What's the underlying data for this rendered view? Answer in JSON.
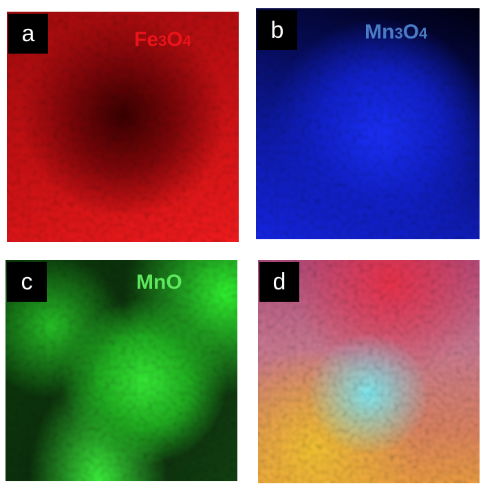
{
  "panels": [
    {
      "label": "a",
      "title": [
        {
          "text": "Fe"
        },
        {
          "text": "3",
          "sub": true
        },
        {
          "text": "O"
        },
        {
          "text": "4",
          "sub": true
        }
      ],
      "color": "#e8141a"
    },
    {
      "label": "b",
      "title": [
        {
          "text": "Mn"
        },
        {
          "text": "3",
          "sub": true
        },
        {
          "text": "O"
        },
        {
          "text": "4",
          "sub": true
        }
      ],
      "color": "#4a7cc4"
    },
    {
      "label": "c",
      "title": [
        {
          "text": "MnO"
        }
      ],
      "color": "#5de85d"
    },
    {
      "label": "d",
      "title": []
    }
  ]
}
